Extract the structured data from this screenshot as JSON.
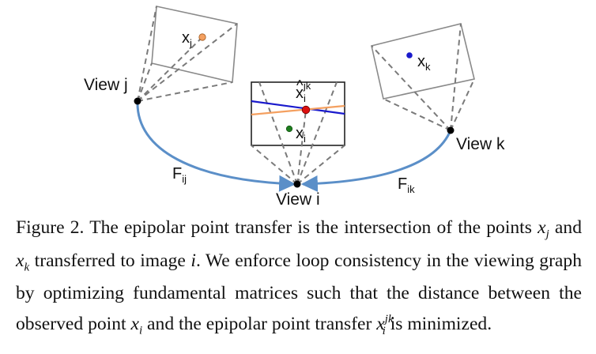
{
  "views": {
    "j": "View j",
    "k": "View k",
    "i": "View i"
  },
  "fundamental": {
    "ij": {
      "base": "F",
      "sub": "ij"
    },
    "ik": {
      "base": "F",
      "sub": "ik"
    }
  },
  "points": {
    "xj": {
      "base": "x",
      "sub": "j",
      "color": "#f4a060"
    },
    "xk": {
      "base": "x",
      "sub": "k",
      "color": "#1a1acc"
    },
    "xi": {
      "base": "x",
      "sub": "i",
      "color": "#1e7d1e"
    },
    "xijk": {
      "base": "x",
      "hat": "^",
      "sub": "i",
      "sup": "jk",
      "color": "#dd1111"
    }
  },
  "colors": {
    "edge": "#5b8fc8",
    "epipolar_blue": "#1a1acc",
    "epipolar_orange": "#f4a060",
    "camera_center": "#000000"
  },
  "caption": {
    "label": "Figure 2.",
    "t1": "The epipolar point transfer is the intersection of the points",
    "xj": "x",
    "xj_sub": "j",
    "t2": "and",
    "xk": "x",
    "xk_sub": "k",
    "t3": "transferred to image",
    "i": "i",
    "t4": ". We enforce loop consistency in the viewing graph by optimizing fundamental matrices such that the distance between the observed point",
    "xi": "x",
    "xi_sub": "i",
    "t5": "and the epipolar point transfer",
    "xijk": "x",
    "xijk_sub": "i",
    "xijk_sup": "jk",
    "t6": "is minimized."
  }
}
